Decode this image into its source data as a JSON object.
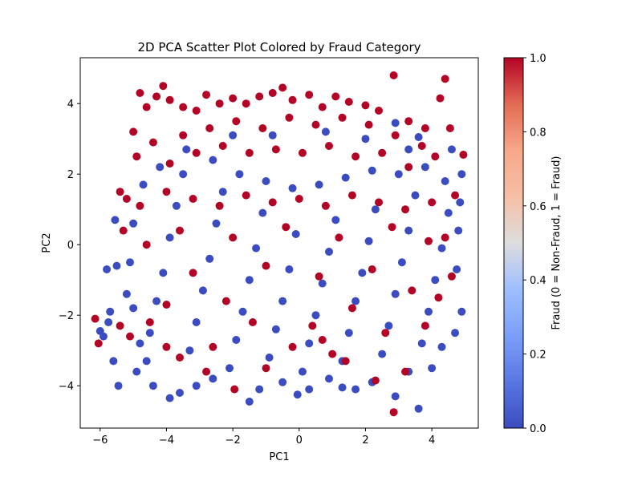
{
  "chart_data": {
    "type": "scatter",
    "title": "2D PCA Scatter Plot Colored by Fraud Category",
    "xlabel": "PC1",
    "ylabel": "PC2",
    "xlim": [
      -6.6,
      5.4
    ],
    "ylim": [
      -5.2,
      5.3
    ],
    "xticks": [
      -6,
      -4,
      -2,
      0,
      2,
      4
    ],
    "yticks": [
      -4,
      -2,
      0,
      2,
      4
    ],
    "x_tick_labels": [
      "−6",
      "−4",
      "−2",
      "0",
      "2",
      "4"
    ],
    "y_tick_labels": [
      "−4",
      "−2",
      "0",
      "2",
      "4"
    ],
    "grid": false,
    "colormap": "coolwarm",
    "colors": {
      "low": "#3b4cc0",
      "mid": "#dddddd",
      "high": "#b40426"
    },
    "colorbar": {
      "label": "Fraud (0 = Non-Fraud, 1 = Fraud)",
      "range": [
        0,
        1
      ],
      "ticks": [
        0,
        0.2,
        0.4,
        0.6,
        0.8,
        1
      ],
      "tick_labels": [
        "0.0",
        "0.2",
        "0.4",
        "0.6",
        "0.8",
        "1.0"
      ]
    },
    "series": [
      {
        "name": "Non-Fraud",
        "value": 0,
        "points": [
          [
            -6.0,
            -2.45
          ],
          [
            -5.9,
            -2.6
          ],
          [
            -5.8,
            -0.7
          ],
          [
            -5.75,
            -2.2
          ],
          [
            -5.7,
            -1.9
          ],
          [
            -5.6,
            -3.3
          ],
          [
            -5.5,
            -0.6
          ],
          [
            -5.55,
            0.7
          ],
          [
            -5.45,
            -4.0
          ],
          [
            -5.2,
            -1.4
          ],
          [
            -4.9,
            -3.6
          ],
          [
            -4.4,
            -4.0
          ],
          [
            -3.9,
            -4.35
          ],
          [
            -3.6,
            -4.2
          ],
          [
            -3.1,
            -4.0
          ],
          [
            -2.6,
            -3.8
          ],
          [
            -1.5,
            -4.45
          ],
          [
            -1.2,
            -4.1
          ],
          [
            -0.5,
            -3.9
          ],
          [
            -0.05,
            -4.25
          ],
          [
            0.3,
            -4.1
          ],
          [
            0.9,
            -3.8
          ],
          [
            1.3,
            -4.05
          ],
          [
            1.7,
            -4.1
          ],
          [
            2.2,
            -3.9
          ],
          [
            2.9,
            -4.3
          ],
          [
            3.6,
            -4.65
          ],
          [
            3.3,
            -3.6
          ],
          [
            4.0,
            -3.5
          ],
          [
            4.3,
            -2.9
          ],
          [
            4.7,
            -2.5
          ],
          [
            4.9,
            -1.9
          ],
          [
            4.75,
            -0.7
          ],
          [
            4.8,
            0.4
          ],
          [
            4.85,
            1.2
          ],
          [
            4.9,
            2.0
          ],
          [
            4.6,
            2.7
          ],
          [
            3.6,
            3.05
          ],
          [
            2.9,
            3.45
          ],
          [
            -4.6,
            -3.3
          ],
          [
            -4.5,
            -2.5
          ],
          [
            -4.3,
            -1.6
          ],
          [
            -4.1,
            -0.8
          ],
          [
            -3.9,
            0.2
          ],
          [
            -3.7,
            1.1
          ],
          [
            -3.5,
            2.0
          ],
          [
            -3.3,
            -3.0
          ],
          [
            -3.1,
            -2.2
          ],
          [
            -2.9,
            -1.3
          ],
          [
            -2.7,
            -0.4
          ],
          [
            -2.5,
            0.6
          ],
          [
            -2.3,
            1.5
          ],
          [
            -2.1,
            -3.5
          ],
          [
            -1.9,
            -2.7
          ],
          [
            -1.7,
            -1.9
          ],
          [
            -1.5,
            -1.0
          ],
          [
            -1.3,
            -0.1
          ],
          [
            -1.1,
            0.9
          ],
          [
            -0.9,
            -3.2
          ],
          [
            -0.7,
            -2.4
          ],
          [
            -0.5,
            -1.6
          ],
          [
            -0.3,
            -0.7
          ],
          [
            -0.1,
            0.3
          ],
          [
            0.1,
            -3.6
          ],
          [
            0.3,
            -2.8
          ],
          [
            0.5,
            -2.0
          ],
          [
            0.7,
            -1.1
          ],
          [
            0.9,
            -0.2
          ],
          [
            1.1,
            0.7
          ],
          [
            1.3,
            -3.3
          ],
          [
            1.5,
            -2.5
          ],
          [
            1.7,
            -1.6
          ],
          [
            1.9,
            -0.8
          ],
          [
            2.1,
            0.1
          ],
          [
            2.3,
            1.0
          ],
          [
            2.5,
            -3.1
          ],
          [
            2.7,
            -2.3
          ],
          [
            2.9,
            -1.4
          ],
          [
            3.1,
            -0.5
          ],
          [
            3.3,
            0.4
          ],
          [
            3.5,
            1.4
          ],
          [
            3.7,
            -2.8
          ],
          [
            3.9,
            -1.9
          ],
          [
            4.1,
            -1.0
          ],
          [
            4.3,
            -0.1
          ],
          [
            4.5,
            0.9
          ],
          [
            4.4,
            1.8
          ],
          [
            3.8,
            2.2
          ],
          [
            3.0,
            2.0
          ],
          [
            2.2,
            2.1
          ],
          [
            1.4,
            1.9
          ],
          [
            0.6,
            1.7
          ],
          [
            -0.2,
            1.6
          ],
          [
            -1.0,
            1.8
          ],
          [
            -1.8,
            2.0
          ],
          [
            -2.6,
            2.4
          ],
          [
            -3.4,
            2.7
          ],
          [
            -4.2,
            2.2
          ],
          [
            -4.7,
            1.7
          ],
          [
            -5.0,
            0.6
          ],
          [
            -5.1,
            -0.5
          ],
          [
            -5.0,
            -1.8
          ],
          [
            -4.8,
            -2.8
          ],
          [
            -0.8,
            3.1
          ],
          [
            0.8,
            3.2
          ],
          [
            2.0,
            3.0
          ],
          [
            -2.0,
            3.1
          ],
          [
            3.3,
            2.7
          ]
        ]
      },
      {
        "name": "Fraud",
        "value": 1,
        "points": [
          [
            -6.15,
            -2.1
          ],
          [
            -6.05,
            -2.8
          ],
          [
            -5.4,
            1.5
          ],
          [
            -5.3,
            0.4
          ],
          [
            -5.2,
            1.3
          ],
          [
            -5.0,
            3.2
          ],
          [
            -4.9,
            2.5
          ],
          [
            -4.8,
            4.3
          ],
          [
            -4.6,
            3.9
          ],
          [
            -4.3,
            4.2
          ],
          [
            -4.1,
            4.5
          ],
          [
            -3.9,
            4.1
          ],
          [
            -3.5,
            3.9
          ],
          [
            -3.1,
            3.8
          ],
          [
            -2.8,
            4.25
          ],
          [
            -2.4,
            4.0
          ],
          [
            -2.0,
            4.15
          ],
          [
            -1.6,
            4.0
          ],
          [
            -1.2,
            4.2
          ],
          [
            -0.8,
            4.3
          ],
          [
            -0.5,
            4.45
          ],
          [
            -0.2,
            4.1
          ],
          [
            0.3,
            4.25
          ],
          [
            0.7,
            3.9
          ],
          [
            1.1,
            4.2
          ],
          [
            1.5,
            4.05
          ],
          [
            2.0,
            3.95
          ],
          [
            2.4,
            3.8
          ],
          [
            2.85,
            4.8
          ],
          [
            3.3,
            3.5
          ],
          [
            3.8,
            3.3
          ],
          [
            4.25,
            4.15
          ],
          [
            4.4,
            4.7
          ],
          [
            4.55,
            3.3
          ],
          [
            4.95,
            2.55
          ],
          [
            4.7,
            1.4
          ],
          [
            4.4,
            0.2
          ],
          [
            4.6,
            -0.9
          ],
          [
            4.2,
            -1.5
          ],
          [
            3.8,
            -2.3
          ],
          [
            3.2,
            -3.6
          ],
          [
            2.85,
            -4.75
          ],
          [
            2.3,
            -3.85
          ],
          [
            1.4,
            -3.3
          ],
          [
            0.7,
            -2.7
          ],
          [
            -0.2,
            -2.9
          ],
          [
            -1.0,
            -3.5
          ],
          [
            -1.95,
            -4.1
          ],
          [
            -2.8,
            -3.6
          ],
          [
            -3.6,
            -3.2
          ],
          [
            -4.0,
            -2.9
          ],
          [
            -4.5,
            -2.2
          ],
          [
            -5.1,
            -2.6
          ],
          [
            -5.4,
            -2.3
          ],
          [
            -3.5,
            3.1
          ],
          [
            -2.7,
            3.3
          ],
          [
            -1.9,
            3.5
          ],
          [
            -1.1,
            3.3
          ],
          [
            -0.3,
            3.6
          ],
          [
            0.5,
            3.4
          ],
          [
            1.3,
            3.6
          ],
          [
            2.1,
            3.4
          ],
          [
            2.9,
            3.1
          ],
          [
            3.7,
            2.8
          ],
          [
            -4.4,
            2.9
          ],
          [
            -3.9,
            2.3
          ],
          [
            -3.1,
            2.6
          ],
          [
            -2.3,
            2.8
          ],
          [
            -1.5,
            2.6
          ],
          [
            -0.7,
            2.7
          ],
          [
            0.1,
            2.6
          ],
          [
            0.9,
            2.8
          ],
          [
            1.7,
            2.5
          ],
          [
            2.5,
            2.6
          ],
          [
            3.3,
            2.2
          ],
          [
            4.1,
            2.5
          ],
          [
            -4.8,
            1.1
          ],
          [
            -4.0,
            1.5
          ],
          [
            -3.2,
            1.3
          ],
          [
            -2.4,
            1.1
          ],
          [
            -1.6,
            1.4
          ],
          [
            -0.8,
            1.2
          ],
          [
            0.0,
            1.3
          ],
          [
            0.8,
            1.1
          ],
          [
            1.6,
            1.4
          ],
          [
            2.4,
            1.2
          ],
          [
            3.2,
            1.0
          ],
          [
            4.0,
            1.2
          ],
          [
            -4.6,
            0.0
          ],
          [
            -3.6,
            0.4
          ],
          [
            -2.0,
            0.2
          ],
          [
            -0.4,
            0.5
          ],
          [
            1.2,
            0.2
          ],
          [
            2.8,
            0.5
          ],
          [
            3.9,
            0.1
          ],
          [
            -3.2,
            -0.8
          ],
          [
            -1.0,
            -0.6
          ],
          [
            0.6,
            -0.9
          ],
          [
            2.2,
            -0.7
          ],
          [
            -2.2,
            -1.6
          ],
          [
            1.6,
            -1.8
          ],
          [
            3.4,
            -1.3
          ],
          [
            -4.0,
            -1.7
          ],
          [
            -1.4,
            -2.2
          ],
          [
            0.4,
            -2.3
          ],
          [
            2.6,
            -2.5
          ],
          [
            -2.6,
            -2.9
          ],
          [
            1.0,
            -3.1
          ]
        ]
      }
    ]
  }
}
